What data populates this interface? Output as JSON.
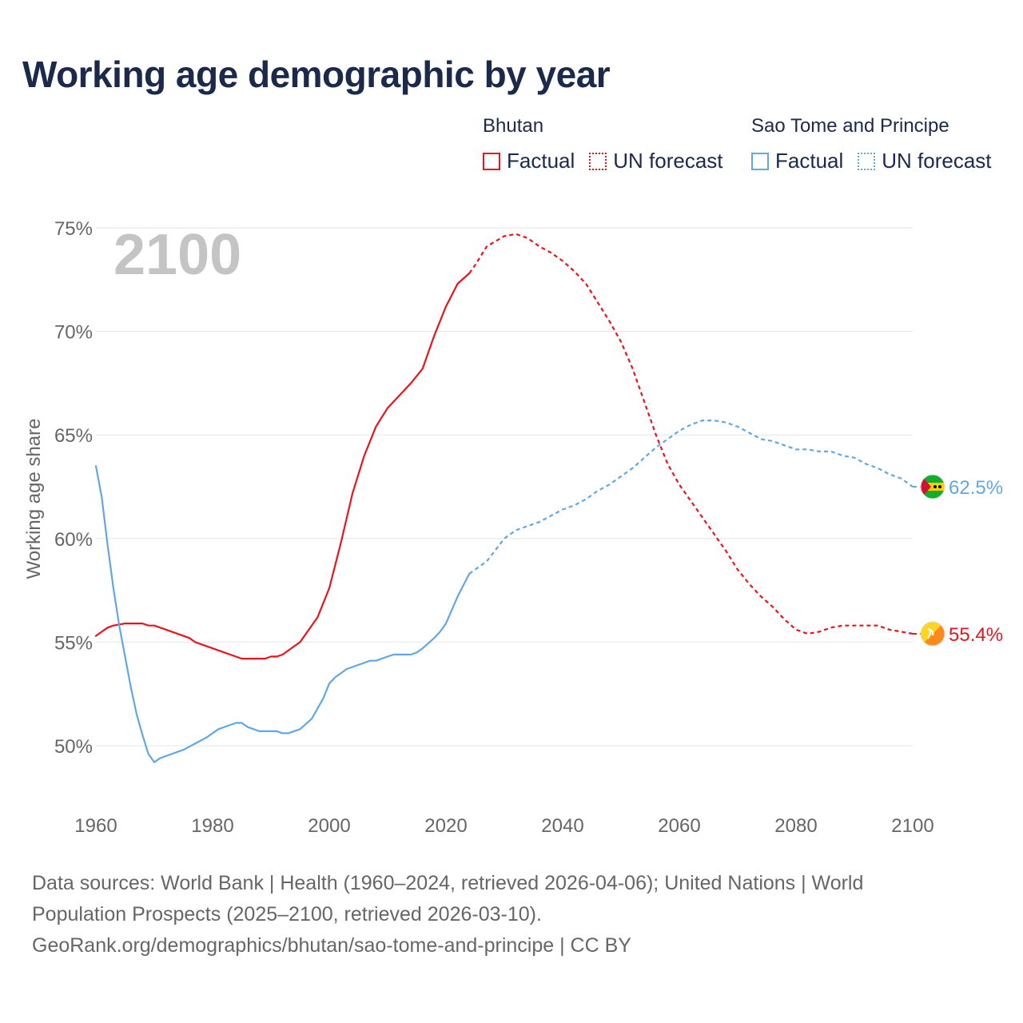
{
  "title": "Working age demographic by year",
  "legend": {
    "groups": [
      {
        "name": "Bhutan",
        "items": [
          "Factual",
          "UN forecast"
        ]
      },
      {
        "name": "Sao Tome and Principe",
        "items": [
          "Factual",
          "UN forecast"
        ]
      }
    ]
  },
  "year_watermark": "2100",
  "footer": {
    "line1": "Data sources: World Bank | Health (1960–2024, retrieved 2026-04-06); United Nations | World",
    "line2": "Population Prospects (2025–2100, retrieved 2026-03-10).",
    "line3": "GeoRank.org/demographics/bhutan/sao-tome-and-principe | CC BY"
  },
  "colors": {
    "bhutan": "#e8141c",
    "sao_tome": "#61a8e3",
    "grid": "#e6e6e6",
    "axis_text": "#666666",
    "title": "#1b2a4a"
  },
  "chart_data": {
    "type": "line",
    "title": "Working age demographic by year",
    "xlabel": "",
    "ylabel": "Working age share",
    "xlim": [
      1960,
      2100
    ],
    "ylim": [
      47.5,
      75.5
    ],
    "x_ticks": [
      1960,
      1980,
      2000,
      2020,
      2040,
      2060,
      2080,
      2100
    ],
    "x_tick_labels": [
      "1960",
      "1980",
      "2000",
      "2020",
      "2040",
      "2060",
      "2080",
      "2100"
    ],
    "y_ticks": [
      50,
      55,
      60,
      65,
      70,
      75
    ],
    "y_tick_labels": [
      "50%",
      "55%",
      "60%",
      "65%",
      "70%",
      "75%"
    ],
    "forecast_start": 2024,
    "series": [
      {
        "name": "Bhutan",
        "color": "#e8141c",
        "end_label": "55.4%",
        "flag_icon": "bhutan-flag-icon",
        "x": [
          1960,
          1962,
          1963,
          1965,
          1968,
          1969,
          1970,
          1972,
          1976,
          1977,
          1980,
          1985,
          1989,
          1990,
          1991,
          1992,
          1995,
          1998,
          2000,
          2002,
          2004,
          2006,
          2008,
          2010,
          2012,
          2014,
          2016,
          2018,
          2020,
          2022,
          2024,
          2025,
          2027,
          2030,
          2032,
          2034,
          2036,
          2038,
          2040,
          2042,
          2044,
          2046,
          2048,
          2050,
          2052,
          2054,
          2056,
          2058,
          2060,
          2062,
          2064,
          2066,
          2068,
          2070,
          2072,
          2074,
          2076,
          2078,
          2080,
          2082,
          2084,
          2086,
          2088,
          2090,
          2094,
          2096,
          2098,
          2100
        ],
        "values": [
          55.3,
          55.7,
          55.8,
          55.9,
          55.9,
          55.8,
          55.8,
          55.6,
          55.2,
          55.0,
          54.7,
          54.2,
          54.2,
          54.3,
          54.3,
          54.4,
          55.0,
          56.2,
          57.6,
          59.8,
          62.2,
          64.0,
          65.4,
          66.3,
          66.9,
          67.5,
          68.2,
          69.8,
          71.2,
          72.3,
          72.8,
          73.2,
          74.1,
          74.6,
          74.7,
          74.5,
          74.1,
          73.8,
          73.4,
          72.9,
          72.3,
          71.4,
          70.5,
          69.5,
          68.2,
          66.6,
          65.0,
          63.6,
          62.6,
          61.8,
          61.0,
          60.2,
          59.4,
          58.5,
          57.8,
          57.2,
          56.7,
          56.1,
          55.6,
          55.4,
          55.5,
          55.7,
          55.8,
          55.8,
          55.8,
          55.6,
          55.5,
          55.4
        ]
      },
      {
        "name": "Sao Tome and Principe",
        "color": "#61a8e3",
        "end_label": "62.5%",
        "flag_icon": "sao-tome-flag-icon",
        "x": [
          1960,
          1961,
          1962,
          1963,
          1964,
          1965,
          1966,
          1967,
          1968,
          1969,
          1970,
          1971,
          1972,
          1973,
          1975,
          1977,
          1979,
          1981,
          1983,
          1984,
          1985,
          1986,
          1988,
          1991,
          1992,
          1993,
          1995,
          1997,
          1999,
          2000,
          2001,
          2003,
          2005,
          2007,
          2008,
          2010,
          2011,
          2012,
          2014,
          2015,
          2016,
          2018,
          2019,
          2020,
          2022,
          2024,
          2025,
          2027,
          2030,
          2032,
          2034,
          2036,
          2038,
          2040,
          2042,
          2044,
          2046,
          2048,
          2050,
          2052,
          2054,
          2056,
          2058,
          2060,
          2062,
          2064,
          2066,
          2068,
          2070,
          2072,
          2074,
          2076,
          2078,
          2080,
          2082,
          2084,
          2086,
          2088,
          2090,
          2092,
          2094,
          2096,
          2098,
          2100
        ],
        "values": [
          63.5,
          62.0,
          59.7,
          57.6,
          55.8,
          54.3,
          52.8,
          51.5,
          50.5,
          49.6,
          49.2,
          49.4,
          49.5,
          49.6,
          49.8,
          50.1,
          50.4,
          50.8,
          51.0,
          51.1,
          51.1,
          50.9,
          50.7,
          50.7,
          50.6,
          50.6,
          50.8,
          51.3,
          52.3,
          53.0,
          53.3,
          53.7,
          53.9,
          54.1,
          54.1,
          54.3,
          54.4,
          54.4,
          54.4,
          54.5,
          54.7,
          55.2,
          55.5,
          55.9,
          57.2,
          58.3,
          58.5,
          58.9,
          60.0,
          60.4,
          60.6,
          60.8,
          61.1,
          61.4,
          61.6,
          61.9,
          62.3,
          62.6,
          63.0,
          63.4,
          63.9,
          64.4,
          64.8,
          65.2,
          65.5,
          65.7,
          65.7,
          65.6,
          65.4,
          65.1,
          64.8,
          64.7,
          64.5,
          64.3,
          64.3,
          64.2,
          64.2,
          64.0,
          63.9,
          63.6,
          63.4,
          63.1,
          62.9,
          62.5
        ]
      }
    ]
  }
}
